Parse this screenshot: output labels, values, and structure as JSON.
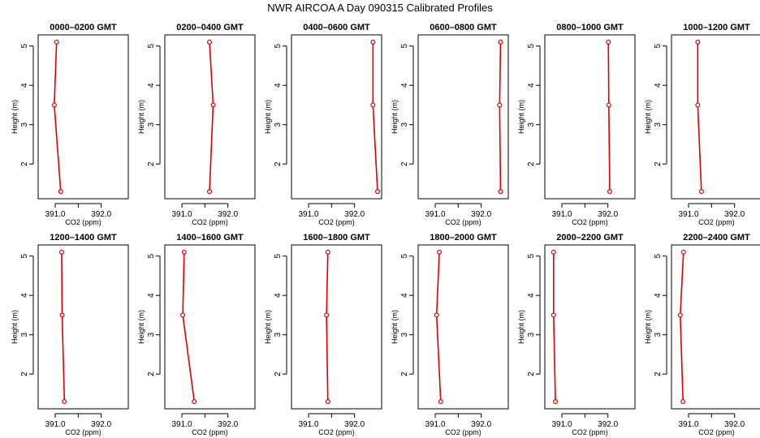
{
  "title": "NWR AIRCOA A  Day 090315  Calibrated Profiles",
  "colors": {
    "series": "#dd0000",
    "axis": "#000000"
  },
  "chart_data": [
    {
      "type": "line",
      "title": "0000–0200 GMT",
      "xlabel": "CO2 (ppm)",
      "ylabel": "Height (m)",
      "xlim": [
        390.7,
        392.5
      ],
      "ylim": [
        1.2,
        5.2
      ],
      "x_ticks": [
        391.0,
        392.0
      ],
      "x_tick_labels": [
        "391.0",
        "392.0"
      ],
      "y_ticks": [
        2,
        3,
        4,
        5
      ],
      "y_tick_labels": [
        "2",
        "3",
        "4",
        "5"
      ],
      "grid": false,
      "series": [
        {
          "x": [
            391.12,
            390.98,
            391.03
          ],
          "y": [
            1.3,
            3.5,
            5.1
          ]
        }
      ]
    },
    {
      "type": "line",
      "title": "0200–0400 GMT",
      "xlabel": "CO2 (ppm)",
      "ylabel": "Height (m)",
      "xlim": [
        390.7,
        392.5
      ],
      "ylim": [
        1.2,
        5.2
      ],
      "x_ticks": [
        391.0,
        392.0
      ],
      "x_tick_labels": [
        "391.0",
        "392.0"
      ],
      "y_ticks": [
        2,
        3,
        4,
        5
      ],
      "y_tick_labels": [
        "2",
        "3",
        "4",
        "5"
      ],
      "grid": false,
      "series": [
        {
          "x": [
            391.6,
            391.68,
            391.6
          ],
          "y": [
            1.3,
            3.5,
            5.1
          ]
        }
      ]
    },
    {
      "type": "line",
      "title": "0400–0600 GMT",
      "xlabel": "CO2 (ppm)",
      "ylabel": "Height (m)",
      "xlim": [
        390.7,
        392.5
      ],
      "ylim": [
        1.2,
        5.2
      ],
      "x_ticks": [
        391.0,
        392.0
      ],
      "x_tick_labels": [
        "391.0",
        "392.0"
      ],
      "y_ticks": [
        2,
        3,
        4,
        5
      ],
      "y_tick_labels": [
        "2",
        "3",
        "4",
        "5"
      ],
      "grid": false,
      "series": [
        {
          "x": [
            392.5,
            392.4,
            392.4
          ],
          "y": [
            1.3,
            3.5,
            5.1
          ]
        }
      ]
    },
    {
      "type": "line",
      "title": "0600–0800 GMT",
      "xlabel": "CO2 (ppm)",
      "ylabel": "Height (m)",
      "xlim": [
        390.7,
        392.5
      ],
      "ylim": [
        1.2,
        5.2
      ],
      "x_ticks": [
        391.0,
        392.0
      ],
      "x_tick_labels": [
        "391.0",
        "392.0"
      ],
      "y_ticks": [
        2,
        3,
        4,
        5
      ],
      "y_tick_labels": [
        "2",
        "3",
        "4",
        "5"
      ],
      "grid": false,
      "series": [
        {
          "x": [
            392.42,
            392.4,
            392.42
          ],
          "y": [
            1.3,
            3.5,
            5.1
          ]
        }
      ]
    },
    {
      "type": "line",
      "title": "0800–1000 GMT",
      "xlabel": "CO2 (ppm)",
      "ylabel": "Height (m)",
      "xlim": [
        390.7,
        392.5
      ],
      "ylim": [
        1.2,
        5.2
      ],
      "x_ticks": [
        391.0,
        392.0
      ],
      "x_tick_labels": [
        "391.0",
        "392.0"
      ],
      "y_ticks": [
        2,
        3,
        4,
        5
      ],
      "y_tick_labels": [
        "2",
        "3",
        "4",
        "5"
      ],
      "grid": false,
      "series": [
        {
          "x": [
            392.04,
            392.02,
            392.01
          ],
          "y": [
            1.3,
            3.5,
            5.1
          ]
        }
      ]
    },
    {
      "type": "line",
      "title": "1000–1200 GMT",
      "xlabel": "CO2 (ppm)",
      "ylabel": "Height (m)",
      "xlim": [
        390.7,
        392.5
      ],
      "ylim": [
        1.2,
        5.2
      ],
      "x_ticks": [
        391.0,
        392.0
      ],
      "x_tick_labels": [
        "391.0",
        "392.0"
      ],
      "y_ticks": [
        2,
        3,
        4,
        5
      ],
      "y_tick_labels": [
        "2",
        "3",
        "4",
        "5"
      ],
      "grid": false,
      "series": [
        {
          "x": [
            391.28,
            391.2,
            391.2
          ],
          "y": [
            1.3,
            3.5,
            5.1
          ]
        }
      ]
    },
    {
      "type": "line",
      "title": "1200–1400 GMT",
      "xlabel": "CO2 (ppm)",
      "ylabel": "Height (m)",
      "xlim": [
        390.7,
        392.5
      ],
      "ylim": [
        1.2,
        5.2
      ],
      "x_ticks": [
        391.0,
        392.0
      ],
      "x_tick_labels": [
        "391.0",
        "392.0"
      ],
      "y_ticks": [
        2,
        3,
        4,
        5
      ],
      "y_tick_labels": [
        "2",
        "3",
        "4",
        "5"
      ],
      "grid": false,
      "series": [
        {
          "x": [
            391.2,
            391.15,
            391.14
          ],
          "y": [
            1.3,
            3.5,
            5.1
          ]
        }
      ]
    },
    {
      "type": "line",
      "title": "1400–1600 GMT",
      "xlabel": "CO2 (ppm)",
      "ylabel": "Height (m)",
      "xlim": [
        390.7,
        392.5
      ],
      "ylim": [
        1.2,
        5.2
      ],
      "x_ticks": [
        391.0,
        392.0
      ],
      "x_tick_labels": [
        "391.0",
        "392.0"
      ],
      "y_ticks": [
        2,
        3,
        4,
        5
      ],
      "y_tick_labels": [
        "2",
        "3",
        "4",
        "5"
      ],
      "grid": false,
      "series": [
        {
          "x": [
            391.27,
            391.02,
            391.05
          ],
          "y": [
            1.3,
            3.5,
            5.1
          ]
        }
      ]
    },
    {
      "type": "line",
      "title": "1600–1800 GMT",
      "xlabel": "CO2 (ppm)",
      "ylabel": "Height (m)",
      "xlim": [
        390.7,
        392.5
      ],
      "ylim": [
        1.2,
        5.2
      ],
      "x_ticks": [
        391.0,
        392.0
      ],
      "x_tick_labels": [
        "391.0",
        "392.0"
      ],
      "y_ticks": [
        2,
        3,
        4,
        5
      ],
      "y_tick_labels": [
        "2",
        "3",
        "4",
        "5"
      ],
      "grid": false,
      "series": [
        {
          "x": [
            391.42,
            391.39,
            391.42
          ],
          "y": [
            1.3,
            3.5,
            5.1
          ]
        }
      ]
    },
    {
      "type": "line",
      "title": "1800–2000 GMT",
      "xlabel": "CO2 (ppm)",
      "ylabel": "Height (m)",
      "xlim": [
        390.7,
        392.5
      ],
      "ylim": [
        1.2,
        5.2
      ],
      "x_ticks": [
        391.0,
        392.0
      ],
      "x_tick_labels": [
        "391.0",
        "392.0"
      ],
      "y_ticks": [
        2,
        3,
        4,
        5
      ],
      "y_tick_labels": [
        "2",
        "3",
        "4",
        "5"
      ],
      "grid": false,
      "series": [
        {
          "x": [
            391.12,
            391.03,
            391.09
          ],
          "y": [
            1.3,
            3.5,
            5.1
          ]
        }
      ]
    },
    {
      "type": "line",
      "title": "2000–2200 GMT",
      "xlabel": "CO2 (ppm)",
      "ylabel": "Height (m)",
      "xlim": [
        390.7,
        392.5
      ],
      "ylim": [
        1.2,
        5.2
      ],
      "x_ticks": [
        391.0,
        392.0
      ],
      "x_tick_labels": [
        "391.0",
        "392.0"
      ],
      "y_ticks": [
        2,
        3,
        4,
        5
      ],
      "y_tick_labels": [
        "2",
        "3",
        "4",
        "5"
      ],
      "grid": false,
      "series": [
        {
          "x": [
            390.86,
            390.82,
            390.82
          ],
          "y": [
            1.3,
            3.5,
            5.1
          ]
        }
      ]
    },
    {
      "type": "line",
      "title": "2200–2400 GMT",
      "xlabel": "CO2 (ppm)",
      "ylabel": "Height (m)",
      "xlim": [
        390.7,
        392.5
      ],
      "ylim": [
        1.2,
        5.2
      ],
      "x_ticks": [
        391.0,
        392.0
      ],
      "x_tick_labels": [
        "391.0",
        "392.0"
      ],
      "y_ticks": [
        2,
        3,
        4,
        5
      ],
      "y_tick_labels": [
        "2",
        "3",
        "4",
        "5"
      ],
      "grid": false,
      "series": [
        {
          "x": [
            390.88,
            390.82,
            390.89
          ],
          "y": [
            1.3,
            3.5,
            5.1
          ]
        }
      ]
    }
  ]
}
